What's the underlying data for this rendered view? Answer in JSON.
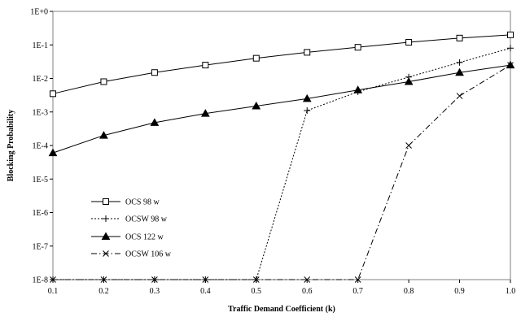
{
  "chart_data": {
    "type": "line",
    "title": "",
    "xlabel": "Traffic Demand Coefficient (k)",
    "ylabel": "Blocking Probability",
    "x": [
      0.1,
      0.2,
      0.3,
      0.4,
      0.5,
      0.6,
      0.7,
      0.8,
      0.9,
      1.0
    ],
    "xlim": [
      0.1,
      1.0
    ],
    "xticks": [
      "0.1",
      "0.2",
      "0.3",
      "0.4",
      "0.5",
      "0.6",
      "0.7",
      "0.8",
      "0.9",
      "1.0"
    ],
    "ylim": [
      1e-08,
      1
    ],
    "yscale": "log",
    "yticks": [
      "1E-8",
      "1E-7",
      "1E-6",
      "1E-5",
      "1E-4",
      "1E-3",
      "1E-2",
      "1E-1",
      "1E+0"
    ],
    "grid": false,
    "legend_position": "lower-left",
    "series": [
      {
        "name": "OCS 98 w",
        "marker": "open-square",
        "line": "solid",
        "values": [
          0.0035,
          0.008,
          0.015,
          0.025,
          0.04,
          0.06,
          0.085,
          0.12,
          0.16,
          0.2
        ]
      },
      {
        "name": "OCSW 98 w",
        "marker": "plus",
        "line": "dotted",
        "values": [
          1e-08,
          1e-08,
          1e-08,
          1e-08,
          1e-08,
          0.0011,
          0.004,
          0.011,
          0.03,
          0.08
        ]
      },
      {
        "name": "OCS 122 w",
        "marker": "filled-triangle",
        "line": "solid",
        "values": [
          6e-05,
          0.0002,
          0.00048,
          0.0009,
          0.0015,
          0.0025,
          0.0045,
          0.008,
          0.015,
          0.025
        ]
      },
      {
        "name": "OCSW 106 w",
        "marker": "cross",
        "line": "dash-dot",
        "values": [
          1e-08,
          1e-08,
          1e-08,
          1e-08,
          1e-08,
          1e-08,
          1e-08,
          0.0001,
          0.003,
          0.025
        ]
      }
    ]
  }
}
